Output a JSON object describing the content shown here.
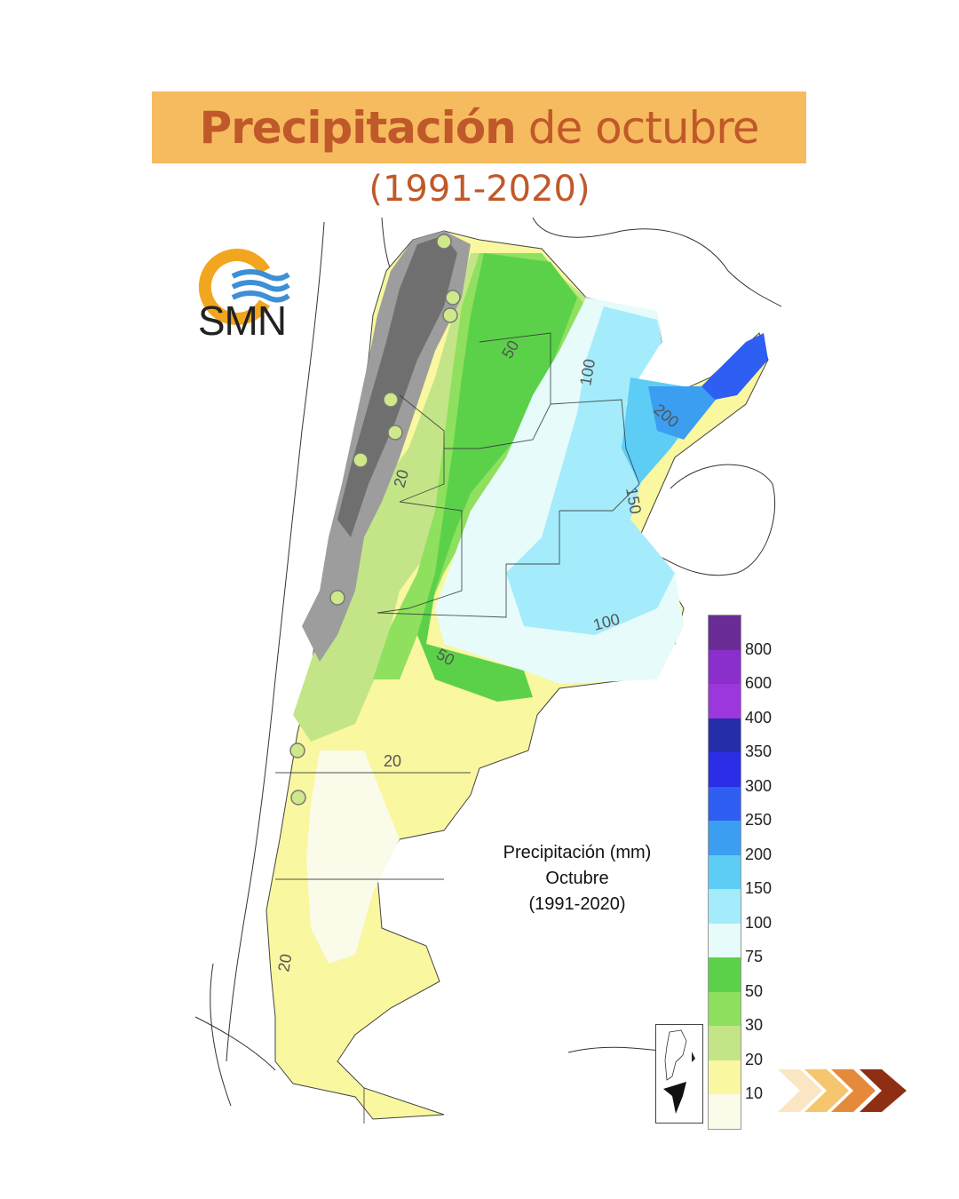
{
  "header": {
    "title_bold": "Precipitación",
    "title_rest": "de octubre",
    "subtitle": "(1991-2020)"
  },
  "logo": {
    "text": "SMN",
    "icon": "smn-logo-icon"
  },
  "map": {
    "caption_line1": "Precipitación (mm)",
    "caption_line2": "Octubre",
    "caption_line3": "(1991-2020)",
    "contours": [
      "50",
      "100",
      "200",
      "150",
      "20",
      "100",
      "50",
      "20",
      "20"
    ]
  },
  "legend": {
    "labels": [
      "800",
      "600",
      "400",
      "350",
      "300",
      "250",
      "200",
      "150",
      "100",
      "75",
      "50",
      "30",
      "20",
      "10"
    ],
    "colors": [
      "#6a2d96",
      "#8b2fcc",
      "#9b37dc",
      "#252ea8",
      "#2a2ee6",
      "#2f5ef2",
      "#3c9ef0",
      "#5ecdf5",
      "#a4ecfb",
      "#e6fbfa",
      "#5bd14a",
      "#8fe05e",
      "#c3e588",
      "#f9f79f",
      "#fbfbe9"
    ]
  },
  "nav": {
    "next_icon": "next-chevrons-icon"
  }
}
